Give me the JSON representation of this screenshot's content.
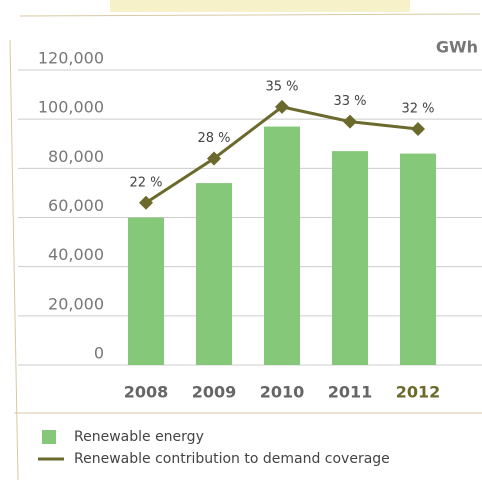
{
  "chart_data": {
    "type": "bar",
    "y_label": "GWh",
    "categories": [
      "2008",
      "2009",
      "2010",
      "2011",
      "2012"
    ],
    "ylim": [
      0,
      120000
    ],
    "yticks": [
      {
        "value": 0,
        "label": "0"
      },
      {
        "value": 20000,
        "label": "20,000"
      },
      {
        "value": 40000,
        "label": "40,000"
      },
      {
        "value": 60000,
        "label": "60,000"
      },
      {
        "value": 80000,
        "label": "80,000"
      },
      {
        "value": 100000,
        "label": "100,000"
      },
      {
        "value": 120000,
        "label": "120,000"
      }
    ],
    "y2lim": [
      0,
      40
    ],
    "grid": true,
    "series": [
      {
        "name": "Renewable energy",
        "type": "bar",
        "color": "#86c879",
        "values": [
          60000,
          74000,
          97000,
          87000,
          86000
        ]
      },
      {
        "name": "Renewable contribution to demand coverage",
        "type": "line",
        "axis": "y2",
        "color": "#6b6a2c",
        "values": [
          22,
          28,
          35,
          33,
          32
        ],
        "value_labels": [
          "22 %",
          "28 %",
          "35 %",
          "33 %",
          "32 %"
        ]
      }
    ]
  }
}
